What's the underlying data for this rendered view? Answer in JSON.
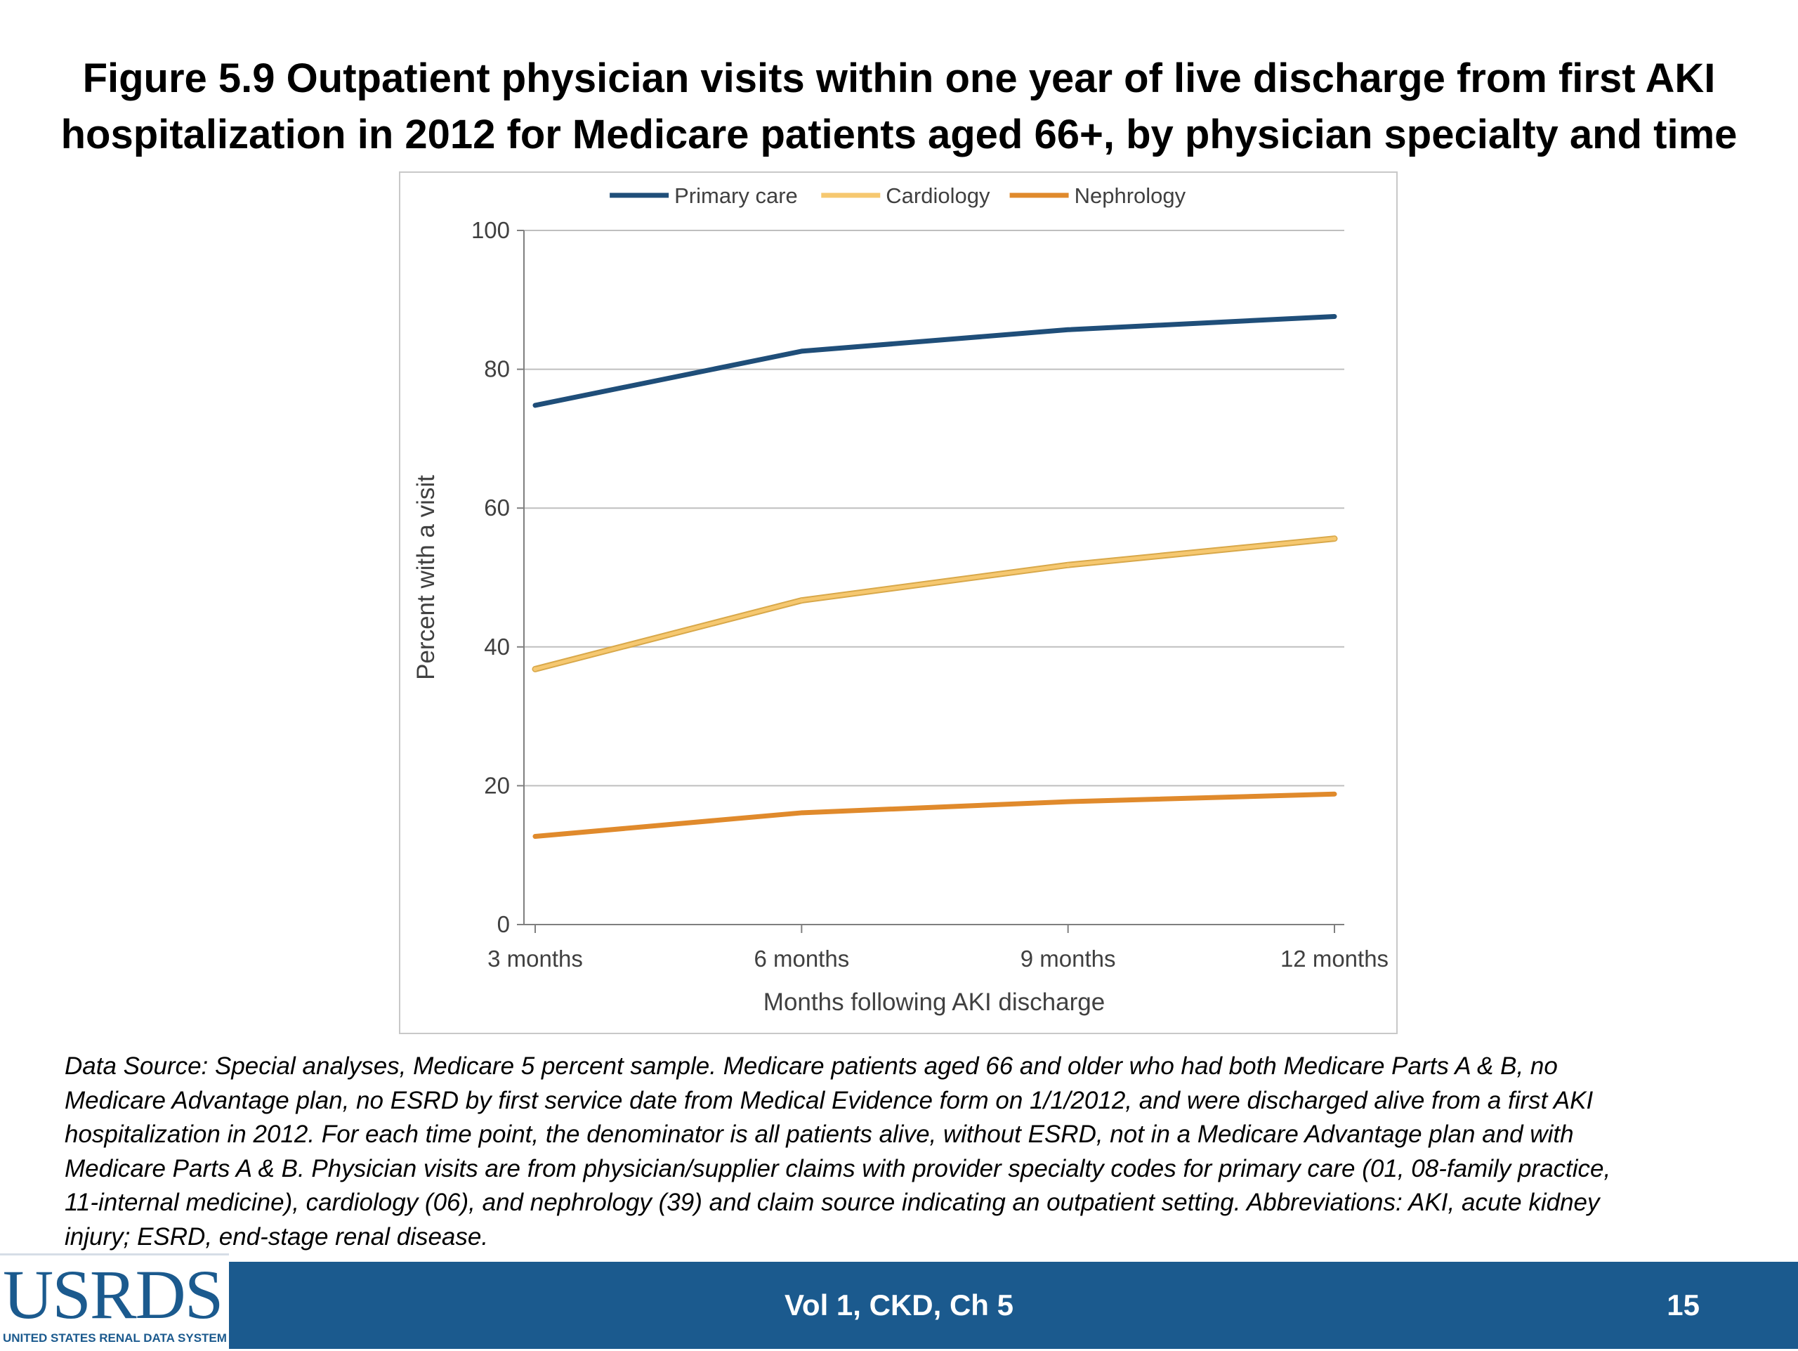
{
  "slide": {
    "title_line1": "Figure 5.9  Outpatient physician visits within one year of live discharge from first AKI",
    "title_line2": "hospitalization in 2012 for Medicare patients aged 66+, by physician specialty and time",
    "note_lines": [
      "Data Source: Special analyses, Medicare 5 percent sample. Medicare patients aged 66 and older who had both Medicare Parts A & B, no",
      "Medicare Advantage plan, no ESRD by first service date from Medical Evidence form on 1/1/2012, and were discharged alive from a first AKI",
      "hospitalization in 2012. For each time point, the denominator is all patients alive, without ESRD, not in a Medicare Advantage plan and with",
      "Medicare Parts A & B. Physician visits are from physician/supplier claims with provider specialty codes for primary care (01, 08-family practice,",
      "11-internal medicine), cardiology (06), and nephrology (39) and claim source indicating an outpatient setting. Abbreviations: AKI, acute kidney",
      "injury; ESRD, end-stage renal disease."
    ]
  },
  "footer": {
    "logo_text": "USRDS",
    "logo_subtitle": "UNITED STATES RENAL DATA SYSTEM",
    "center_text": "Vol 1, CKD, Ch 5",
    "page_number": "15",
    "bar_color": "#1b5a8e"
  },
  "chart_data": {
    "type": "line",
    "categories": [
      "3 months",
      "6 months",
      "9 months",
      "12 months"
    ],
    "series": [
      {
        "name": "Primary care",
        "values": [
          74.8,
          82.6,
          85.7,
          87.6
        ],
        "color": "#1f4e79"
      },
      {
        "name": "Cardiology",
        "values": [
          36.8,
          46.7,
          51.8,
          55.6
        ],
        "color": "#f6c870"
      },
      {
        "name": "Nephrology",
        "values": [
          12.7,
          16.1,
          17.7,
          18.8
        ],
        "color": "#e08a2c"
      }
    ],
    "xlabel": "Months following AKI discharge",
    "ylabel": "Percent with a visit",
    "ylim": [
      0,
      100
    ],
    "yticks": [
      0,
      20,
      40,
      60,
      80,
      100
    ],
    "grid": true,
    "legend_position": "top"
  }
}
